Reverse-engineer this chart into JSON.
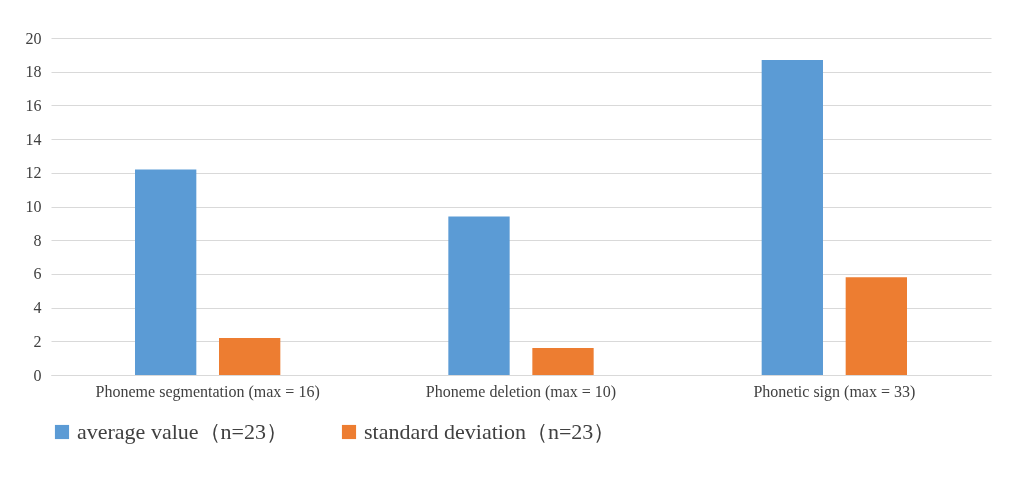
{
  "chart_data": {
    "type": "bar",
    "categories": [
      "Phoneme segmentation (max = 16)",
      "Phoneme deletion (max = 10)",
      "Phonetic sign (max = 33)"
    ],
    "series": [
      {
        "name": "average value（n=23）",
        "color": "#5b9bd5",
        "values": [
          12.2,
          9.4,
          18.7
        ]
      },
      {
        "name": "standard deviation（n=23）",
        "color": "#ed7d31",
        "values": [
          2.2,
          1.6,
          5.8
        ]
      }
    ],
    "ylim": [
      0,
      20
    ],
    "yticks": [
      0,
      2,
      4,
      6,
      8,
      10,
      12,
      14,
      16,
      18,
      20
    ],
    "grid": "y",
    "legend": "bottom"
  }
}
